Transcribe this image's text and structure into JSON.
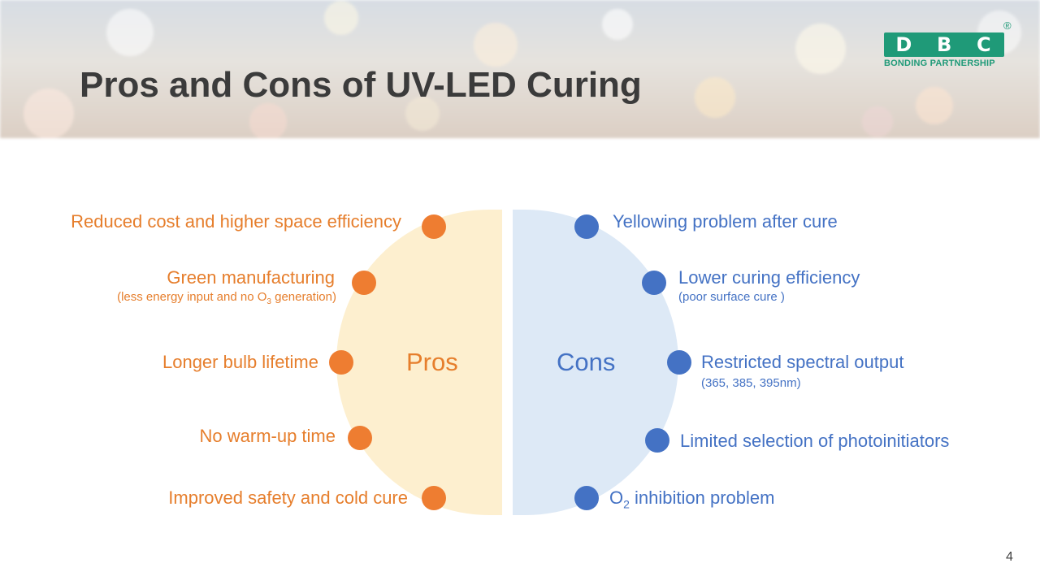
{
  "slide": {
    "title": "Pros and Cons of UV-LED Curing",
    "page_number": "4"
  },
  "logo": {
    "letters": [
      "D",
      "B",
      "C"
    ],
    "tagline": "BONDING PARTNERSHIP",
    "registered": "®"
  },
  "diagram": {
    "pros_label": "Pros",
    "cons_label": "Cons",
    "pros": [
      {
        "text": "Reduced cost and higher space efficiency"
      },
      {
        "text": "Green manufacturing",
        "note_pre": "(less energy input and no O",
        "note_sub": "3",
        "note_post": " generation)"
      },
      {
        "text": "Longer bulb lifetime"
      },
      {
        "text": "No warm-up time"
      },
      {
        "text": "Improved safety and cold cure"
      }
    ],
    "cons": [
      {
        "text": "Yellowing problem after cure"
      },
      {
        "text": "Lower curing efficiency",
        "note": "(poor surface cure )"
      },
      {
        "text": "Restricted spectral output",
        "note": "(365, 385, 395nm)"
      },
      {
        "text": "Limited selection of photoinitiators"
      },
      {
        "text_pre": "O",
        "text_sub": "2",
        "text_post": " inhibition problem"
      }
    ]
  },
  "colors": {
    "pros": "#ee7d31",
    "cons": "#4472c4",
    "pros_fill": "#fdefcf",
    "cons_fill": "#dde9f6",
    "brand": "#1f9a78"
  }
}
